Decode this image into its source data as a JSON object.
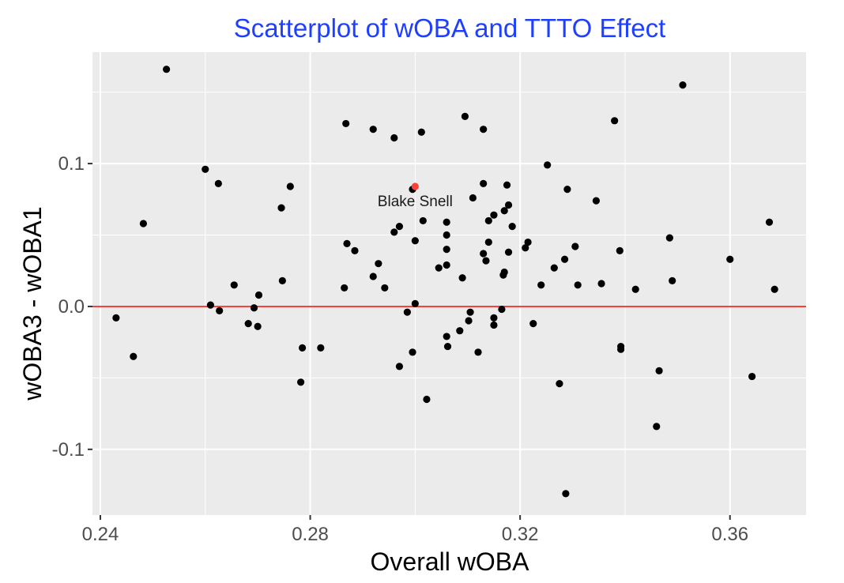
{
  "chart_data": {
    "type": "scatter",
    "title": "Scatterplot of wOBA and TTTO Effect",
    "xlabel": "Overall wOBA",
    "ylabel": "wOBA3 - wOBA1",
    "xlim": [
      0.2385,
      0.3745
    ],
    "ylim": [
      -0.146,
      0.178
    ],
    "xticks": [
      0.24,
      0.28,
      0.32,
      0.36
    ],
    "xtick_labels": [
      "0.24",
      "0.28",
      "0.32",
      "0.36"
    ],
    "yticks": [
      -0.1,
      0.0,
      0.1
    ],
    "ytick_labels": [
      "-0.1",
      "0.0",
      "0.1"
    ],
    "grid": true,
    "background": "#ebebeb",
    "grid_color": "#ffffff",
    "title_color": "#1f3fff",
    "point_color": "#000000",
    "highlight_color": "#f8413a",
    "hline": {
      "y": 0.0,
      "color": "#f8413a"
    },
    "highlight": {
      "name": "Blake Snell",
      "x": 0.3,
      "y": 0.084
    },
    "points": [
      [
        0.2526,
        0.166
      ],
      [
        0.26,
        0.096
      ],
      [
        0.2625,
        0.086
      ],
      [
        0.2482,
        0.058
      ],
      [
        0.243,
        -0.008
      ],
      [
        0.2463,
        -0.035
      ],
      [
        0.261,
        0.001
      ],
      [
        0.2627,
        -0.003
      ],
      [
        0.2655,
        0.015
      ],
      [
        0.2682,
        -0.012
      ],
      [
        0.2693,
        -0.001
      ],
      [
        0.2702,
        0.008
      ],
      [
        0.27,
        -0.014
      ],
      [
        0.2745,
        0.069
      ],
      [
        0.2762,
        0.084
      ],
      [
        0.2747,
        0.018
      ],
      [
        0.2782,
        -0.053
      ],
      [
        0.2785,
        -0.029
      ],
      [
        0.282,
        -0.029
      ],
      [
        0.2868,
        0.128
      ],
      [
        0.287,
        0.044
      ],
      [
        0.2885,
        0.039
      ],
      [
        0.2865,
        0.013
      ],
      [
        0.292,
        0.124
      ],
      [
        0.293,
        0.03
      ],
      [
        0.292,
        0.021
      ],
      [
        0.2942,
        0.013
      ],
      [
        0.296,
        0.118
      ],
      [
        0.296,
        0.052
      ],
      [
        0.297,
        0.056
      ],
      [
        0.297,
        -0.042
      ],
      [
        0.2985,
        -0.004
      ],
      [
        0.3,
        0.002
      ],
      [
        0.3,
        0.046
      ],
      [
        0.2995,
        -0.032
      ],
      [
        0.2995,
        0.082
      ],
      [
        0.3012,
        0.122
      ],
      [
        0.3015,
        0.06
      ],
      [
        0.3022,
        -0.065
      ],
      [
        0.3045,
        0.027
      ],
      [
        0.306,
        0.029
      ],
      [
        0.306,
        0.059
      ],
      [
        0.306,
        0.05
      ],
      [
        0.306,
        0.04
      ],
      [
        0.306,
        -0.021
      ],
      [
        0.3062,
        -0.028
      ],
      [
        0.3085,
        -0.017
      ],
      [
        0.309,
        0.02
      ],
      [
        0.3095,
        0.133
      ],
      [
        0.3102,
        -0.01
      ],
      [
        0.3105,
        -0.004
      ],
      [
        0.311,
        0.076
      ],
      [
        0.312,
        -0.032
      ],
      [
        0.313,
        0.124
      ],
      [
        0.313,
        0.086
      ],
      [
        0.313,
        0.037
      ],
      [
        0.3135,
        0.032
      ],
      [
        0.314,
        0.045
      ],
      [
        0.314,
        0.06
      ],
      [
        0.315,
        0.064
      ],
      [
        0.315,
        -0.008
      ],
      [
        0.315,
        -0.013
      ],
      [
        0.3165,
        -0.002
      ],
      [
        0.317,
        0.067
      ],
      [
        0.317,
        0.024
      ],
      [
        0.3168,
        0.022
      ],
      [
        0.3175,
        0.085
      ],
      [
        0.3178,
        0.071
      ],
      [
        0.3178,
        0.038
      ],
      [
        0.3185,
        0.056
      ],
      [
        0.321,
        0.041
      ],
      [
        0.3215,
        0.045
      ],
      [
        0.3225,
        -0.012
      ],
      [
        0.324,
        0.015
      ],
      [
        0.3252,
        0.099
      ],
      [
        0.3265,
        0.027
      ],
      [
        0.3275,
        -0.054
      ],
      [
        0.3285,
        0.033
      ],
      [
        0.329,
        0.082
      ],
      [
        0.3305,
        0.042
      ],
      [
        0.331,
        0.015
      ],
      [
        0.3287,
        -0.131
      ],
      [
        0.3345,
        0.074
      ],
      [
        0.3355,
        0.016
      ],
      [
        0.338,
        0.13
      ],
      [
        0.339,
        0.039
      ],
      [
        0.3392,
        -0.028
      ],
      [
        0.3392,
        -0.03
      ],
      [
        0.342,
        0.012
      ],
      [
        0.346,
        -0.084
      ],
      [
        0.3465,
        -0.045
      ],
      [
        0.3485,
        0.048
      ],
      [
        0.349,
        0.018
      ],
      [
        0.351,
        0.155
      ],
      [
        0.36,
        0.033
      ],
      [
        0.3642,
        -0.049
      ],
      [
        0.3675,
        0.059
      ],
      [
        0.3685,
        0.012
      ]
    ]
  }
}
